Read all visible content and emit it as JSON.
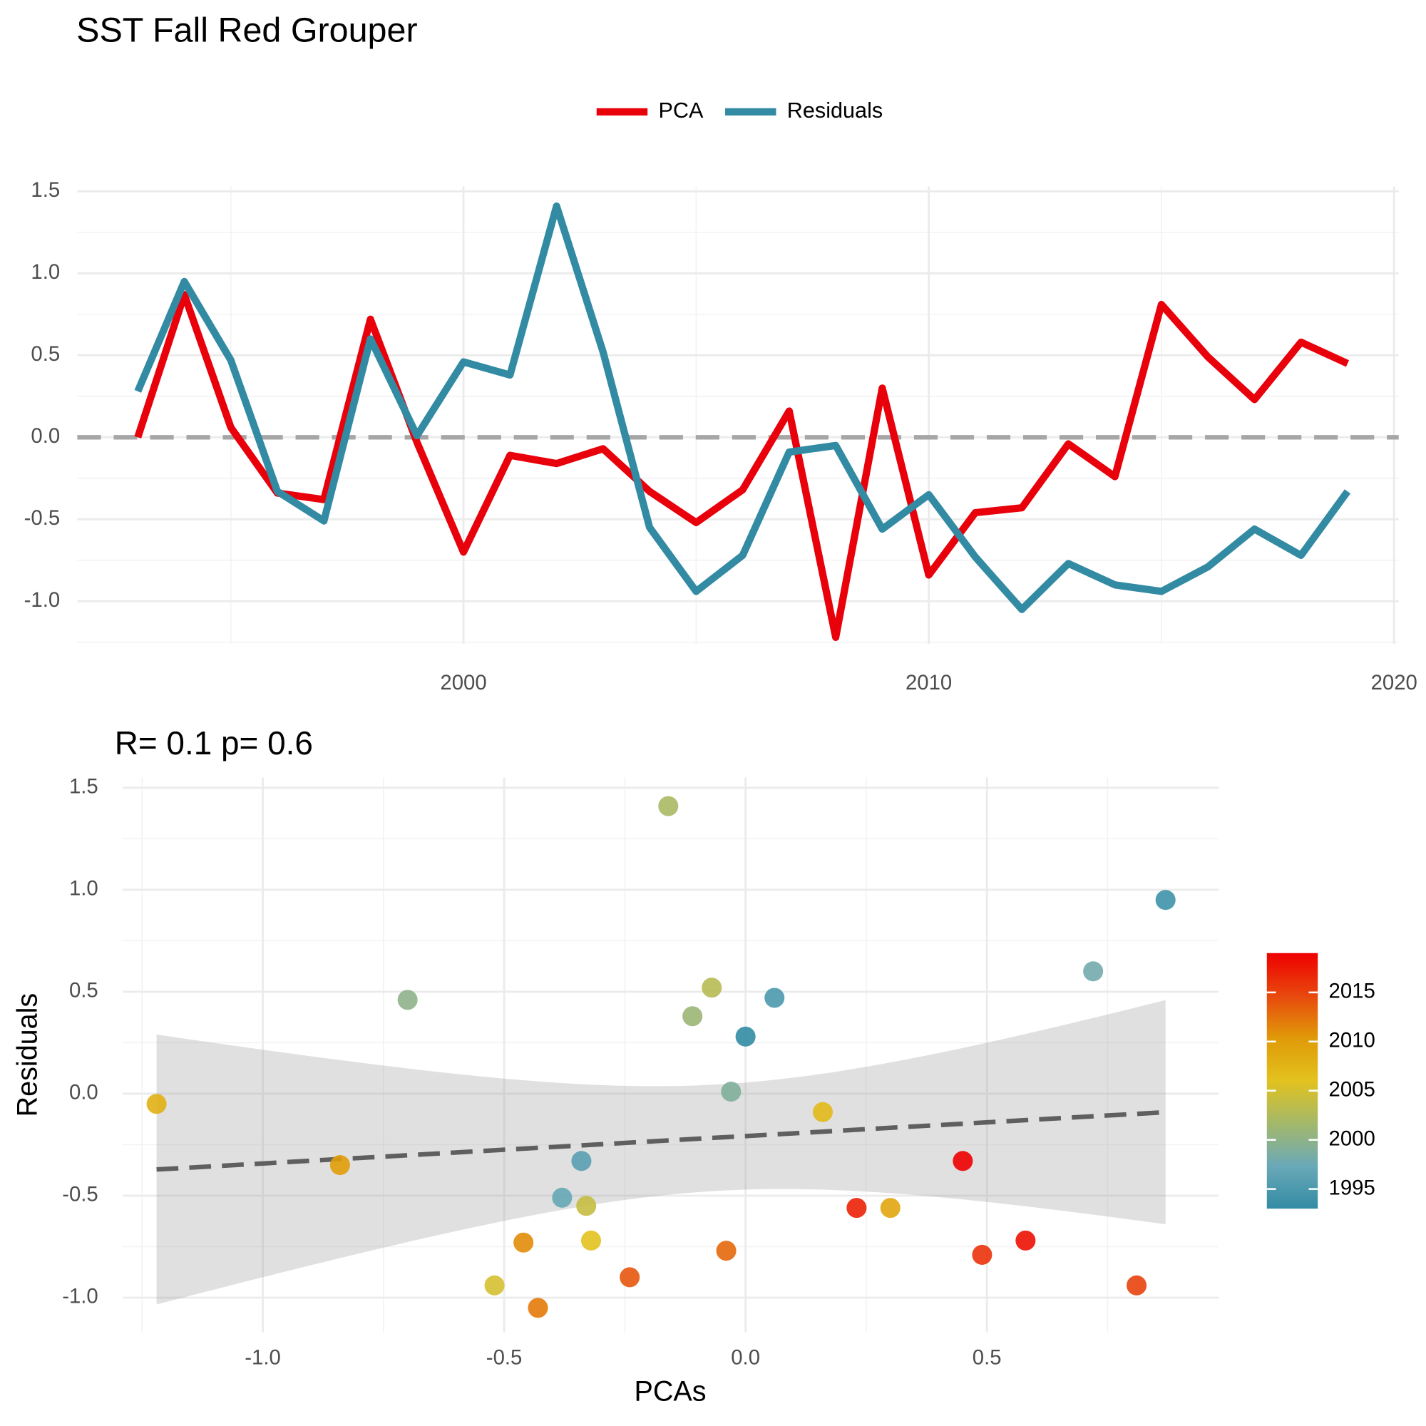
{
  "chart_data": [
    {
      "type": "line",
      "title": "SST Fall Red Grouper",
      "x": [
        1993,
        1994,
        1995,
        1996,
        1997,
        1998,
        1999,
        2000,
        2001,
        2002,
        2003,
        2004,
        2005,
        2006,
        2007,
        2008,
        2009,
        2010,
        2011,
        2012,
        2013,
        2014,
        2015,
        2016,
        2017,
        2018,
        2019
      ],
      "series": [
        {
          "name": "PCA",
          "color": "#e8000b",
          "values": [
            0.0,
            0.87,
            0.06,
            -0.34,
            -0.38,
            0.72,
            -0.03,
            -0.7,
            -0.11,
            -0.16,
            -0.07,
            -0.33,
            -0.52,
            -0.32,
            0.16,
            -1.22,
            0.3,
            -0.84,
            -0.46,
            -0.43,
            -0.04,
            -0.24,
            0.81,
            0.49,
            0.23,
            0.58,
            0.45
          ]
        },
        {
          "name": "Residuals",
          "color": "#328ba3",
          "values": [
            0.28,
            0.95,
            0.47,
            -0.33,
            -0.51,
            0.6,
            0.01,
            0.46,
            0.38,
            1.41,
            0.52,
            -0.55,
            -0.94,
            -0.72,
            -0.09,
            -0.05,
            -0.56,
            -0.35,
            -0.73,
            -1.05,
            -0.77,
            -0.9,
            -0.94,
            -0.79,
            -0.56,
            -0.72,
            -0.33
          ]
        }
      ],
      "xlim": [
        1991.7,
        2020.1
      ],
      "xticks": [
        2000,
        2010,
        2020
      ],
      "ylim": [
        -1.26,
        1.53
      ],
      "yticks": [
        1.5,
        {
          "value": 1,
          "label": "1.0"
        },
        0.5,
        {
          "value": 0,
          "label": "0.0"
        },
        -0.5,
        {
          "value": -1,
          "label": "-1.0"
        }
      ],
      "hline": 0,
      "grid": true,
      "legend": "top"
    },
    {
      "type": "scatter",
      "annotation": "R= 0.1  p= 0.6",
      "x_label": "PCAs",
      "y_label": "Residuals",
      "x": [
        0.0,
        0.87,
        0.06,
        -0.34,
        -0.38,
        0.72,
        -0.03,
        -0.7,
        -0.11,
        -0.16,
        -0.07,
        -0.33,
        -0.52,
        -0.32,
        0.16,
        -1.22,
        0.3,
        -0.84,
        -0.46,
        -0.43,
        -0.04,
        -0.24,
        0.81,
        0.49,
        0.23,
        0.58,
        0.45
      ],
      "values": [
        0.28,
        0.95,
        0.47,
        -0.33,
        -0.51,
        0.6,
        0.01,
        0.46,
        0.38,
        1.41,
        0.52,
        -0.55,
        -0.94,
        -0.72,
        -0.09,
        -0.05,
        -0.56,
        -0.35,
        -0.73,
        -1.05,
        -0.77,
        -0.9,
        -0.94,
        -0.79,
        -0.56,
        -0.72,
        -0.33
      ],
      "color_values": [
        1993,
        1994,
        1995,
        1996,
        1997,
        1998,
        1999,
        2000,
        2001,
        2002,
        2003,
        2004,
        2005,
        2006,
        2007,
        2008,
        2009,
        2010,
        2011,
        2012,
        2013,
        2014,
        2015,
        2016,
        2017,
        2018,
        2019
      ],
      "colorscale": [
        "#328ba3",
        "#6aa9b8",
        "#a4b86a",
        "#e2c21e",
        "#e09a08",
        "#e8480e",
        "#ee0000"
      ],
      "colorlim": [
        1993,
        2019
      ],
      "colorticks": [
        1995,
        2000,
        2005,
        2010,
        2015
      ],
      "xlim": [
        -1.29,
        0.98
      ],
      "xticks": [
        {
          "value": -1,
          "label": "-1.0"
        },
        -0.5,
        {
          "value": 0,
          "label": "0.0"
        },
        0.5
      ],
      "ylim": [
        -1.17,
        1.55
      ],
      "yticks": [
        1.5,
        {
          "value": 1,
          "label": "1.0"
        },
        0.5,
        {
          "value": 0,
          "label": "0.0"
        },
        -0.5,
        {
          "value": -1,
          "label": "-1.0"
        }
      ],
      "fit": "linear",
      "grid": true
    }
  ]
}
